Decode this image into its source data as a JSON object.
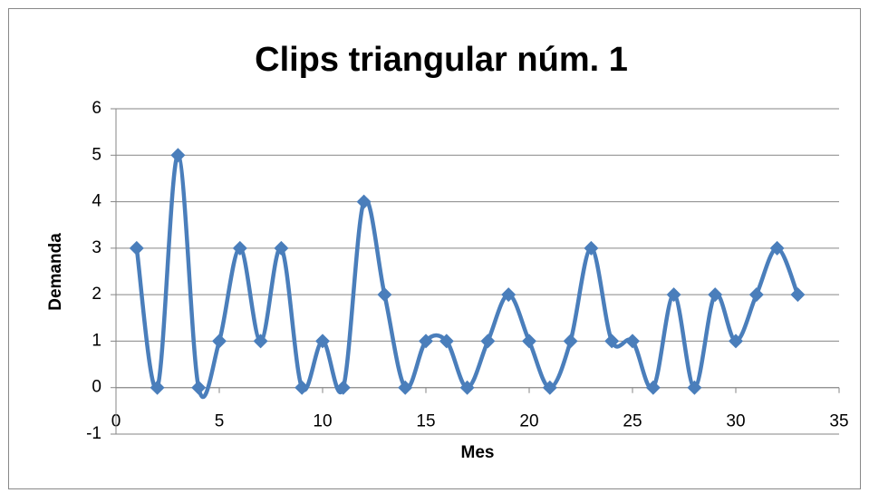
{
  "chart_data": {
    "type": "line",
    "title": "Clips triangular núm. 1",
    "x_label": "Mes",
    "y_label": "Demanda",
    "x": [
      1,
      2,
      3,
      4,
      5,
      6,
      7,
      8,
      9,
      10,
      11,
      12,
      13,
      14,
      15,
      16,
      17,
      18,
      19,
      20,
      21,
      22,
      23,
      24,
      25,
      26,
      27,
      28,
      29,
      30,
      31,
      32,
      33
    ],
    "series": [
      {
        "name": "Demanda",
        "color": "#4a7ebb",
        "values": [
          3,
          0,
          5,
          0,
          1,
          3,
          1,
          3,
          0,
          1,
          0,
          4,
          2,
          0,
          1,
          1,
          0,
          1,
          2,
          1,
          0,
          1,
          3,
          1,
          1,
          0,
          2,
          0,
          2,
          1,
          2,
          3,
          2
        ]
      }
    ],
    "xlim": [
      0,
      35
    ],
    "xticks": [
      0,
      5,
      10,
      15,
      20,
      25,
      30,
      35
    ],
    "ylim": [
      -1,
      6
    ],
    "yticks": [
      -1,
      0,
      1,
      2,
      3,
      4,
      5,
      6
    ],
    "grid": true,
    "smooth": true
  }
}
